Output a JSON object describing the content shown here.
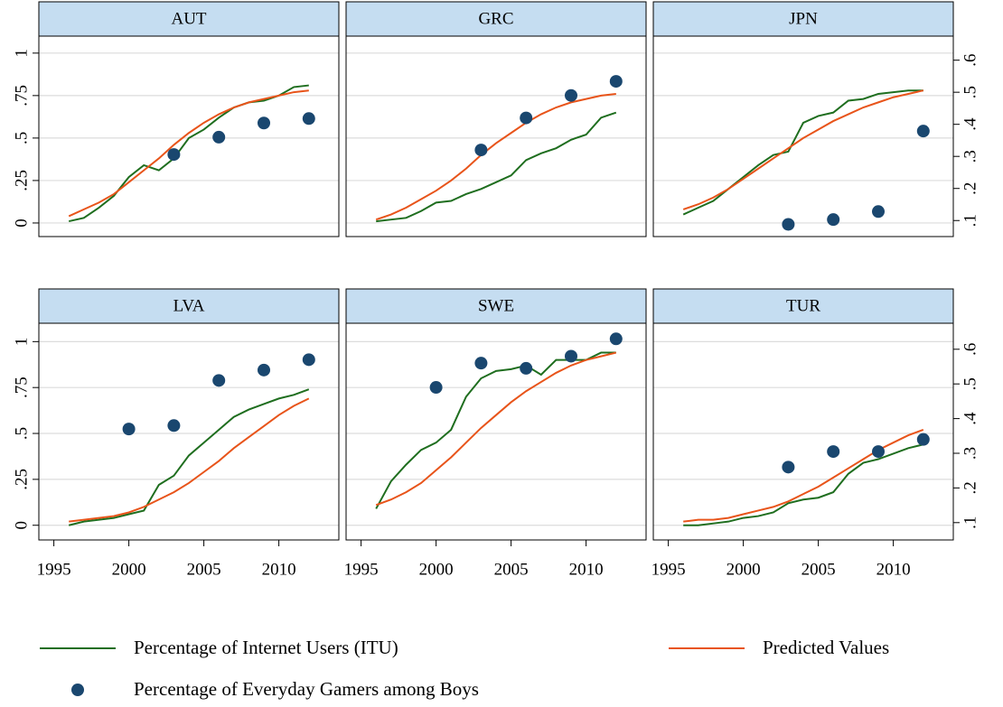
{
  "legend": [
    {
      "name": "Percentage of Internet Users (ITU)",
      "color": "#1f6e1f",
      "marker": "line"
    },
    {
      "name": "Predicted Values",
      "color": "#e8541a",
      "marker": "line"
    },
    {
      "name": "Percentage of Everyday Gamers among Boys",
      "color": "#1a476f",
      "marker": "dot"
    }
  ],
  "axes": {
    "xlim": [
      1994,
      2014
    ],
    "xticks": [
      1995,
      2000,
      2005,
      2010
    ],
    "ylim": [
      -0.08,
      1.1
    ],
    "yticks": [
      0,
      {
        "value": 0.25,
        "label": ".25"
      },
      {
        "value": 0.5,
        "label": ".5"
      },
      {
        "value": 0.75,
        "label": ".75"
      },
      1
    ],
    "y2lim": [
      0.05,
      0.675
    ],
    "y2ticks": [
      {
        "value": 0.1,
        "label": ".1"
      },
      {
        "value": 0.2,
        "label": ".2"
      },
      {
        "value": 0.3,
        "label": ".3"
      },
      {
        "value": 0.4,
        "label": ".4"
      },
      {
        "value": 0.5,
        "label": ".5"
      },
      {
        "value": 0.6,
        "label": ".6"
      }
    ],
    "grid": true
  },
  "chart_data": [
    {
      "type": "line",
      "title": "AUT",
      "x": [
        1996,
        1997,
        1998,
        1999,
        2000,
        2001,
        2002,
        2003,
        2004,
        2005,
        2006,
        2007,
        2008,
        2009,
        2010,
        2011,
        2012
      ],
      "series": [
        {
          "values": [
            0.01,
            0.03,
            0.09,
            0.16,
            0.27,
            0.34,
            0.31,
            0.38,
            0.5,
            0.55,
            0.62,
            0.68,
            0.71,
            0.72,
            0.75,
            0.8,
            0.81
          ]
        },
        {
          "values": [
            0.04,
            0.08,
            0.12,
            0.17,
            0.24,
            0.31,
            0.38,
            0.46,
            0.53,
            0.59,
            0.64,
            0.68,
            0.71,
            0.73,
            0.75,
            0.77,
            0.78
          ]
        },
        {
          "axis": "y2",
          "values": [
            null,
            null,
            null,
            null,
            null,
            null,
            null,
            0.306,
            null,
            null,
            0.36,
            null,
            null,
            0.404,
            null,
            null,
            0.418
          ]
        }
      ]
    },
    {
      "type": "line",
      "title": "GRC",
      "x": [
        1996,
        1997,
        1998,
        1999,
        2000,
        2001,
        2002,
        2003,
        2004,
        2005,
        2006,
        2007,
        2008,
        2009,
        2010,
        2011,
        2012
      ],
      "series": [
        {
          "values": [
            0.01,
            0.02,
            0.03,
            0.07,
            0.12,
            0.13,
            0.17,
            0.2,
            0.24,
            0.28,
            0.37,
            0.41,
            0.44,
            0.49,
            0.52,
            0.62,
            0.65
          ]
        },
        {
          "values": [
            0.02,
            0.05,
            0.09,
            0.14,
            0.19,
            0.25,
            0.32,
            0.4,
            0.47,
            0.53,
            0.59,
            0.64,
            0.68,
            0.71,
            0.73,
            0.75,
            0.76
          ]
        },
        {
          "axis": "y2",
          "values": [
            null,
            null,
            null,
            null,
            null,
            null,
            null,
            0.32,
            null,
            null,
            0.42,
            null,
            null,
            0.49,
            null,
            null,
            0.534
          ]
        }
      ]
    },
    {
      "type": "line",
      "title": "JPN",
      "x": [
        1996,
        1997,
        1998,
        1999,
        2000,
        2001,
        2002,
        2003,
        2004,
        2005,
        2006,
        2007,
        2008,
        2009,
        2010,
        2011,
        2012
      ],
      "series": [
        {
          "values": [
            0.05,
            0.09,
            0.13,
            0.2,
            0.27,
            0.34,
            0.4,
            0.42,
            0.59,
            0.63,
            0.65,
            0.72,
            0.73,
            0.76,
            0.77,
            0.78,
            0.78
          ]
        },
        {
          "values": [
            0.08,
            0.11,
            0.15,
            0.2,
            0.26,
            0.32,
            0.38,
            0.44,
            0.5,
            0.55,
            0.6,
            0.64,
            0.68,
            0.71,
            0.74,
            0.76,
            0.78
          ]
        },
        {
          "axis": "y2",
          "values": [
            null,
            null,
            null,
            null,
            null,
            null,
            null,
            0.088,
            null,
            null,
            0.103,
            null,
            null,
            0.128,
            null,
            null,
            0.379
          ]
        }
      ]
    },
    {
      "type": "line",
      "title": "LVA",
      "x": [
        1996,
        1997,
        1998,
        1999,
        2000,
        2001,
        2002,
        2003,
        2004,
        2005,
        2006,
        2007,
        2008,
        2009,
        2010,
        2011,
        2012
      ],
      "series": [
        {
          "values": [
            0.0,
            0.02,
            0.03,
            0.04,
            0.06,
            0.08,
            0.22,
            0.27,
            0.38,
            0.45,
            0.52,
            0.59,
            0.63,
            0.66,
            0.69,
            0.71,
            0.74
          ]
        },
        {
          "values": [
            0.02,
            0.03,
            0.04,
            0.05,
            0.07,
            0.1,
            0.14,
            0.18,
            0.23,
            0.29,
            0.35,
            0.42,
            0.48,
            0.54,
            0.6,
            0.65,
            0.69
          ]
        },
        {
          "axis": "y2",
          "values": [
            null,
            null,
            null,
            null,
            0.37,
            null,
            null,
            0.38,
            null,
            null,
            0.51,
            null,
            null,
            0.54,
            null,
            null,
            0.57
          ]
        }
      ]
    },
    {
      "type": "line",
      "title": "SWE",
      "x": [
        1996,
        1997,
        1998,
        1999,
        2000,
        2001,
        2002,
        2003,
        2004,
        2005,
        2006,
        2007,
        2008,
        2009,
        2010,
        2011,
        2012
      ],
      "series": [
        {
          "values": [
            0.09,
            0.24,
            0.33,
            0.41,
            0.45,
            0.52,
            0.7,
            0.8,
            0.84,
            0.85,
            0.87,
            0.82,
            0.9,
            0.9,
            0.9,
            0.94,
            0.94
          ]
        },
        {
          "values": [
            0.11,
            0.14,
            0.18,
            0.23,
            0.3,
            0.37,
            0.45,
            0.53,
            0.6,
            0.67,
            0.73,
            0.78,
            0.83,
            0.87,
            0.9,
            0.92,
            0.94
          ]
        },
        {
          "axis": "y2",
          "values": [
            null,
            null,
            null,
            null,
            0.49,
            null,
            null,
            0.56,
            null,
            null,
            0.545,
            null,
            null,
            0.58,
            null,
            null,
            0.63
          ]
        }
      ]
    },
    {
      "type": "line",
      "title": "TUR",
      "x": [
        1996,
        1997,
        1998,
        1999,
        2000,
        2001,
        2002,
        2003,
        2004,
        2005,
        2006,
        2007,
        2008,
        2009,
        2010,
        2011,
        2012
      ],
      "series": [
        {
          "values": [
            0.0,
            0.0,
            0.01,
            0.02,
            0.04,
            0.05,
            0.07,
            0.12,
            0.14,
            0.15,
            0.18,
            0.28,
            0.34,
            0.36,
            0.39,
            0.42,
            0.44
          ]
        },
        {
          "values": [
            0.02,
            0.03,
            0.03,
            0.04,
            0.06,
            0.08,
            0.1,
            0.13,
            0.17,
            0.21,
            0.26,
            0.31,
            0.36,
            0.41,
            0.45,
            0.49,
            0.52
          ]
        },
        {
          "axis": "y2",
          "values": [
            null,
            null,
            null,
            null,
            null,
            null,
            null,
            0.26,
            null,
            null,
            0.305,
            null,
            null,
            0.305,
            null,
            null,
            0.34
          ]
        }
      ]
    }
  ]
}
